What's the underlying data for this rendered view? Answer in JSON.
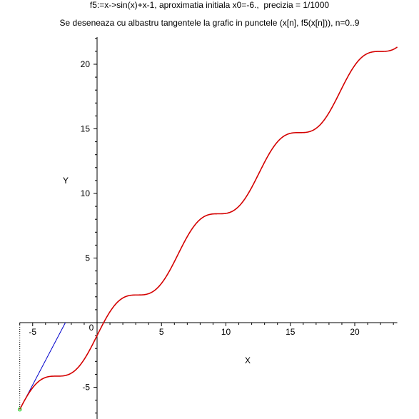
{
  "chart_data": {
    "type": "line",
    "title": "f5:=x->sin(x)+x-1, aproximatia initiala x0=-6.,  precizia = 1/1000",
    "subtitle": "Se deseneaza cu albastru tangentele la grafic in punctele (x[n], f5(x[n])), n=0..9",
    "xlabel": "X",
    "ylabel": "Y",
    "function": "sin(x)+x-1",
    "xlim": [
      -6,
      23.3
    ],
    "ylim": [
      -7,
      22
    ],
    "x_ticks": [
      -5,
      5,
      10,
      15,
      20
    ],
    "y_ticks": [
      -5,
      5,
      10,
      15,
      20
    ],
    "origin_label": "0",
    "curve": {
      "color": "#d40000",
      "x": [
        -6,
        -5,
        -4,
        -3,
        -2,
        -1,
        0,
        1,
        2,
        3,
        4,
        5,
        6,
        7,
        8,
        9,
        10,
        11,
        12,
        13,
        14,
        15,
        16,
        17,
        18,
        19,
        20,
        21,
        22,
        23.3
      ],
      "y": [
        -6.72,
        -5.04,
        -4.24,
        -4.14,
        -3.91,
        -2.84,
        -1.0,
        0.84,
        1.91,
        2.14,
        2.24,
        3.04,
        4.72,
        6.66,
        7.99,
        8.41,
        8.46,
        9.0,
        10.46,
        12.42,
        13.99,
        14.65,
        14.71,
        15.04,
        16.25,
        18.15,
        19.91,
        20.84,
        20.99,
        21.06
      ]
    },
    "tangents": {
      "color": "#0000cc",
      "x0": -6,
      "points": [
        {
          "x": [
            -6.0,
            -2.46
          ],
          "y": [
            -6.72,
            0.0
          ]
        }
      ]
    },
    "start_point": {
      "x": -6.0,
      "y": -6.72,
      "color": "#22cc22"
    },
    "dotted_guide": {
      "x": -6.0,
      "y": [
        0,
        -6.72
      ]
    },
    "grid": false,
    "legend": "none"
  }
}
